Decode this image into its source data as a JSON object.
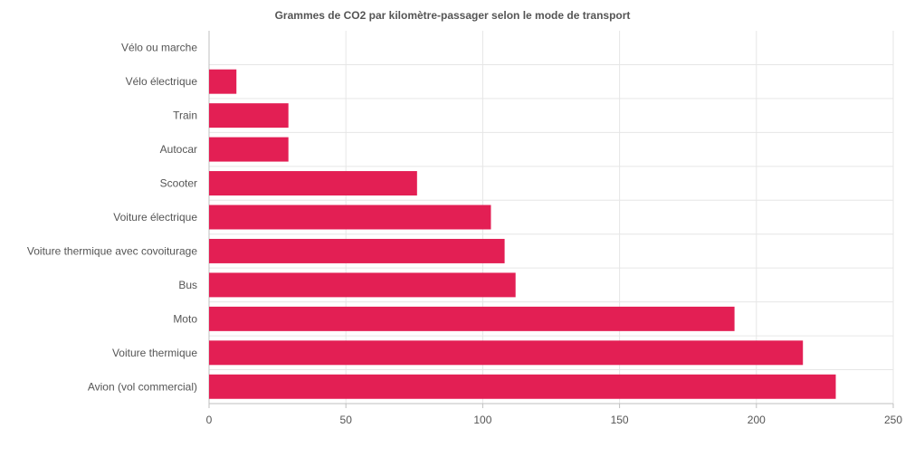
{
  "chart_data": {
    "type": "bar",
    "orientation": "horizontal",
    "title": "Grammes de CO2 par kilomètre-passager selon le mode de transport",
    "xlabel": "",
    "ylabel": "",
    "categories": [
      "Vélo ou marche",
      "Vélo électrique",
      "Train",
      "Autocar",
      "Scooter",
      "Voiture électrique",
      "Voiture thermique avec covoiturage",
      "Bus",
      "Moto",
      "Voiture thermique",
      "Avion (vol commercial)"
    ],
    "values": [
      0,
      10,
      29,
      29,
      76,
      103,
      108,
      112,
      192,
      217,
      229
    ],
    "xlim": [
      0,
      250
    ],
    "xticks": [
      0,
      50,
      100,
      150,
      200,
      250
    ],
    "grid": true,
    "legend": "none",
    "bar_color": "#e31f54",
    "grid_color": "#e6e6e6",
    "axis_color": "#bfbfbf",
    "label_color": "#555555"
  }
}
